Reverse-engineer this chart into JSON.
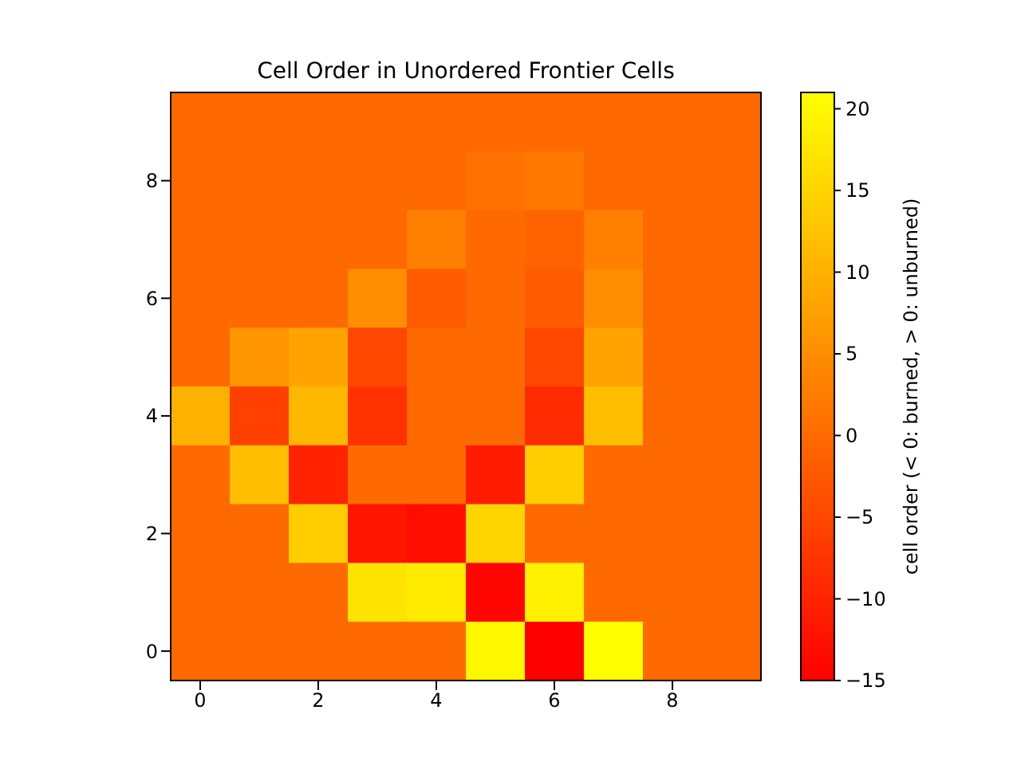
{
  "chart_data": {
    "type": "heatmap",
    "title": "Cell Order in Unordered Frontier Cells",
    "clabel": "cell order (< 0: burned, > 0: unburned)",
    "categories": [
      "0",
      null,
      "2",
      null,
      "4",
      null,
      "6",
      null,
      "8",
      null
    ],
    "y_categories": [
      null,
      "8",
      null,
      "6",
      null,
      "4",
      null,
      "2",
      null,
      "0"
    ],
    "clim": [
      -15,
      21
    ],
    "cticks": [
      -15,
      -10,
      -5,
      0,
      5,
      10,
      15,
      20
    ],
    "cells": [
      [
        0,
        0,
        0,
        0,
        0,
        0,
        0,
        0,
        0,
        0
      ],
      [
        0,
        0,
        0,
        0,
        0,
        1,
        2,
        0,
        0,
        0
      ],
      [
        0,
        0,
        0,
        0,
        3,
        0,
        -1,
        3,
        0,
        0
      ],
      [
        0,
        0,
        0,
        5,
        -2,
        0,
        -2,
        5,
        0,
        0
      ],
      [
        0,
        6,
        8,
        -5,
        0,
        0,
        -5,
        8,
        0,
        0
      ],
      [
        10,
        -6,
        11,
        -8,
        0,
        0,
        -9,
        12,
        0,
        0
      ],
      [
        0,
        12,
        -10,
        0,
        0,
        -11,
        14,
        0,
        0,
        0
      ],
      [
        0,
        0,
        14,
        -12,
        -13,
        15,
        0,
        0,
        0,
        0
      ],
      [
        0,
        0,
        0,
        17,
        18,
        -14,
        19,
        0,
        0,
        0
      ],
      [
        0,
        0,
        0,
        0,
        0,
        20,
        -15,
        21,
        0,
        0
      ]
    ]
  }
}
